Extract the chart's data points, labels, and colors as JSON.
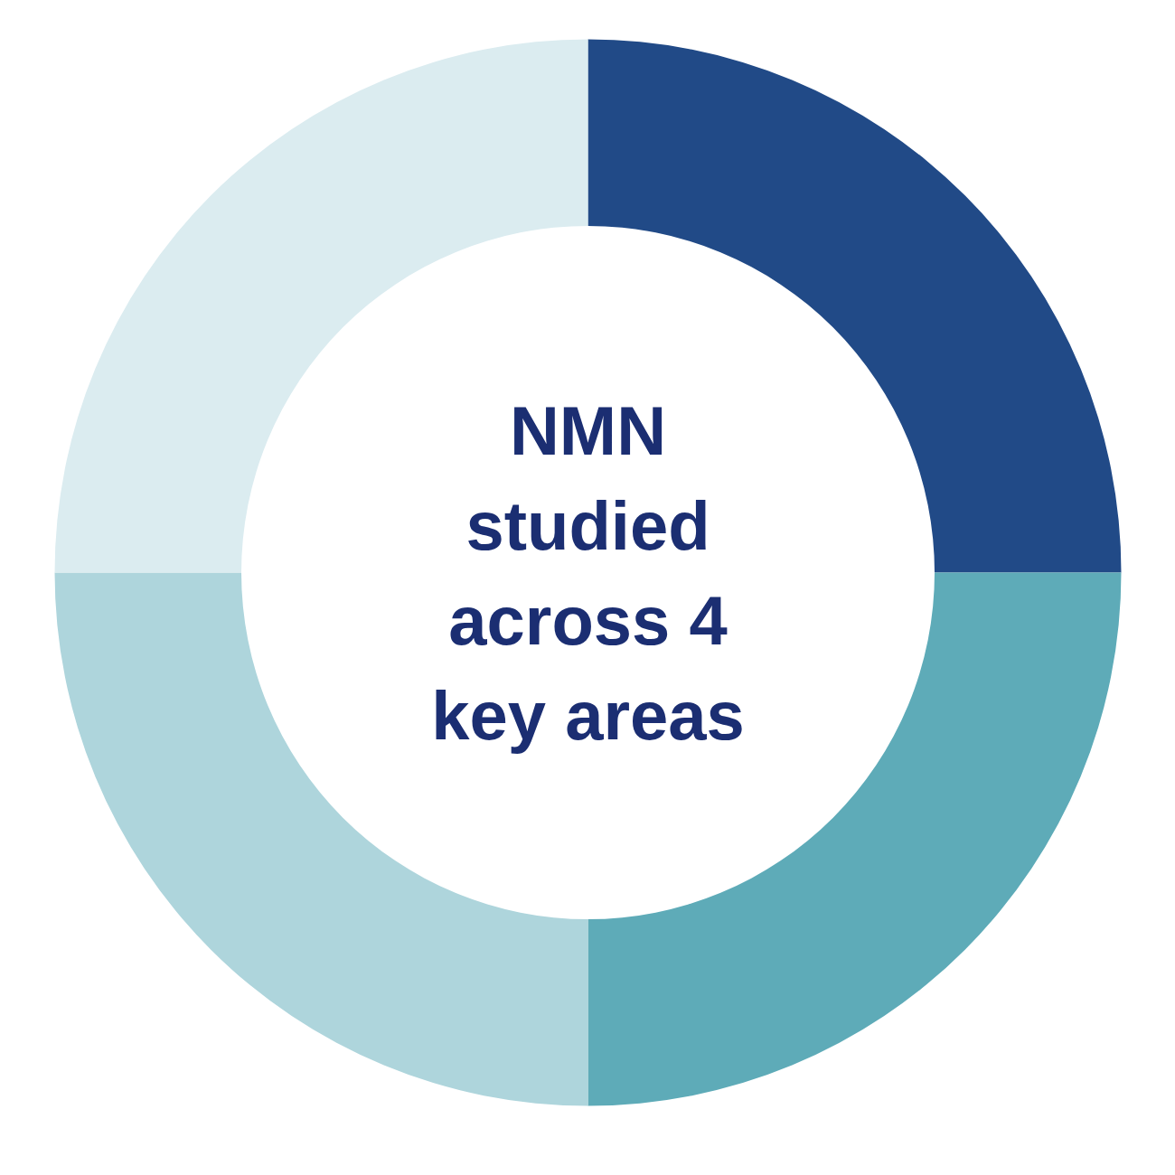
{
  "chart_data": {
    "type": "donut",
    "title": "NMN studied across 4 key areas",
    "categories": [
      null,
      null,
      null,
      null
    ],
    "values": [
      25,
      25,
      25,
      25
    ],
    "colors": [
      "#214a87",
      "#5eabb8",
      "#aed5dc",
      "#dbecf0"
    ]
  }
}
